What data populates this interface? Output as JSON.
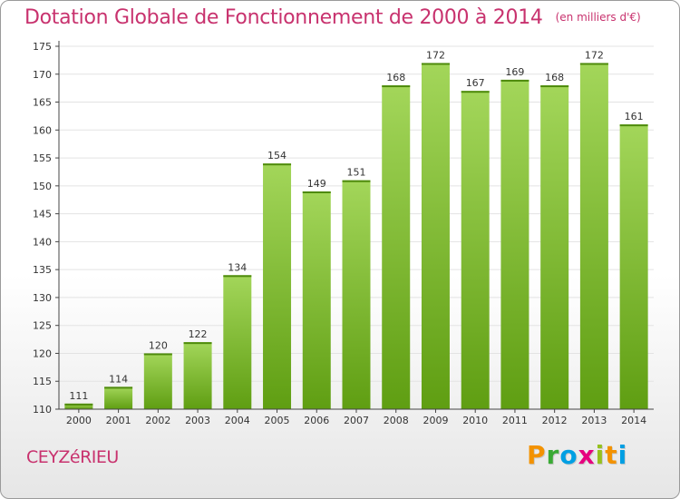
{
  "header": {
    "title": "Dotation Globale de Fonctionnement de 2000 à 2014",
    "unit": "(en milliers d'€)"
  },
  "footer": {
    "commune": "CEYZéRIEU",
    "logo": {
      "letters": [
        "P",
        "r",
        "o",
        "x",
        "i",
        "t",
        "i"
      ],
      "colors": [
        "#f39200",
        "#3aaa35",
        "#009fe3",
        "#e6007e",
        "#95c11f",
        "#f39200",
        "#009fe3"
      ]
    }
  },
  "colors": {
    "bar_top": "#a3d65a",
    "bar_bottom": "#5f9e12",
    "title": "#c8326e",
    "axis": "#444444",
    "grid": "#e3e3e3"
  },
  "chart_data": {
    "type": "bar",
    "title": "Dotation Globale de Fonctionnement de 2000 à 2014",
    "subtitle": "(en milliers d'€)",
    "xlabel": "",
    "ylabel": "",
    "categories": [
      "2000",
      "2001",
      "2002",
      "2003",
      "2004",
      "2005",
      "2006",
      "2007",
      "2008",
      "2009",
      "2010",
      "2011",
      "2012",
      "2013",
      "2014"
    ],
    "values": [
      111,
      114,
      120,
      122,
      134,
      154,
      149,
      151,
      168,
      172,
      167,
      169,
      168,
      172,
      161
    ],
    "ylim": [
      110,
      175
    ],
    "yticks": [
      110,
      115,
      120,
      125,
      130,
      135,
      140,
      145,
      150,
      155,
      160,
      165,
      170,
      175
    ],
    "grid": true,
    "data_labels": true
  }
}
